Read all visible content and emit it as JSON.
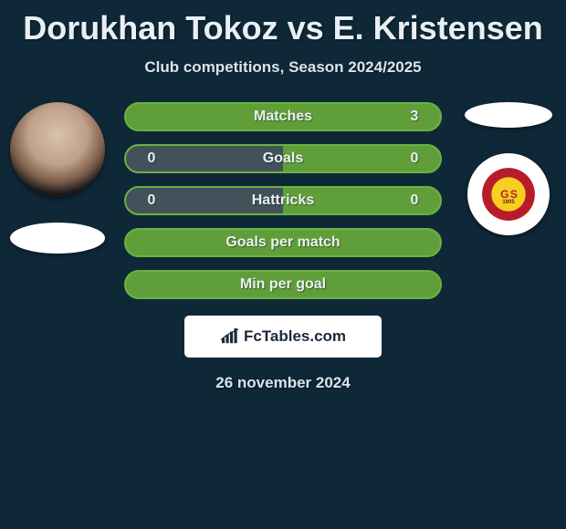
{
  "title": "Dorukhan Tokoz vs E. Kristensen",
  "subtitle": "Club competitions, Season 2024/2025",
  "date": "26 november 2024",
  "watermark": "FcTables.com",
  "colors": {
    "player1_bar": "#43525a",
    "player2_bar": "#609e3a",
    "border": "#6ab33f",
    "background": "#0f2838"
  },
  "player1": {
    "name": "Dorukhan Tokoz",
    "avatar_type": "photo"
  },
  "player2": {
    "name": "E. Kristensen",
    "club": "Galatasaray",
    "club_year": "1905"
  },
  "stats": [
    {
      "label": "Matches",
      "p1": "",
      "p2": "3",
      "left_color": "#609e3a",
      "right_color": "#609e3a"
    },
    {
      "label": "Goals",
      "p1": "0",
      "p2": "0",
      "left_color": "#43525a",
      "right_color": "#609e3a"
    },
    {
      "label": "Hattricks",
      "p1": "0",
      "p2": "0",
      "left_color": "#43525a",
      "right_color": "#609e3a"
    },
    {
      "label": "Goals per match",
      "p1": "",
      "p2": "",
      "left_color": "#609e3a",
      "right_color": "#609e3a"
    },
    {
      "label": "Min per goal",
      "p1": "",
      "p2": "",
      "left_color": "#609e3a",
      "right_color": "#609e3a"
    }
  ]
}
